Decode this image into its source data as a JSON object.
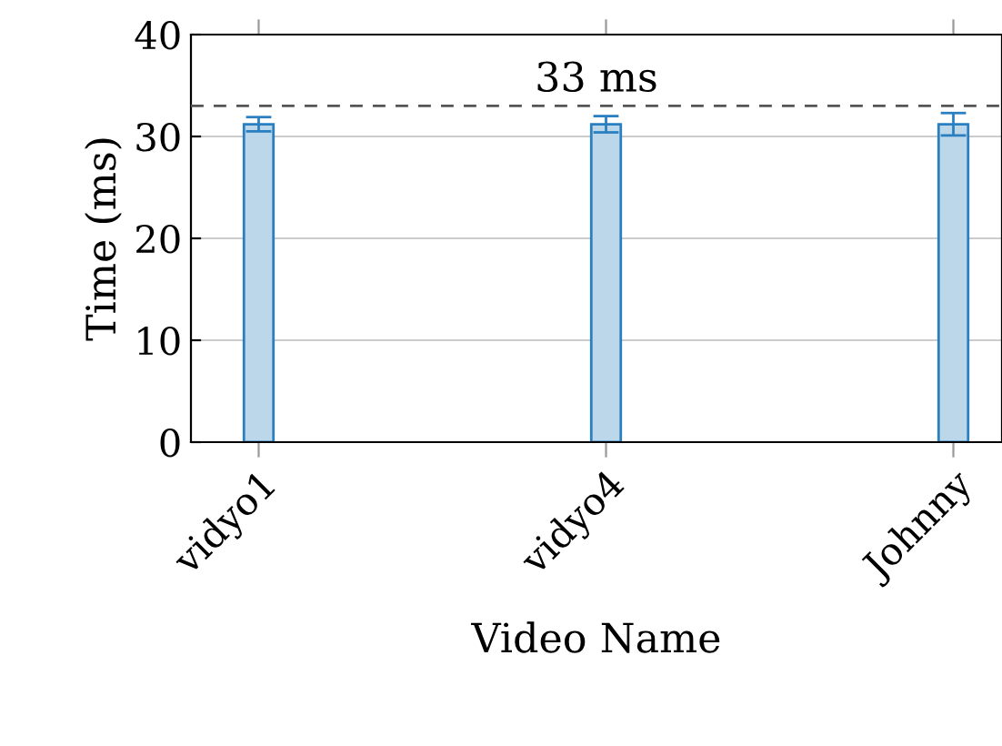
{
  "chart_data": {
    "type": "bar",
    "xlabel": "Video Name",
    "ylabel": "Time (ms)",
    "categories": [
      "vidyo1",
      "vidyo4",
      "Johnny"
    ],
    "values": [
      31.2,
      31.2,
      31.2
    ],
    "errors": [
      0.7,
      0.8,
      1.1
    ],
    "color": "#bcd7ea",
    "ylim": [
      0,
      40
    ],
    "yticks": [
      0,
      10,
      20,
      30,
      40
    ],
    "grid": "y",
    "ref_lines": [
      {
        "axis": "y",
        "value": 33,
        "label": "33 ms",
        "color": "#555555",
        "line_style": "dashed"
      }
    ]
  }
}
